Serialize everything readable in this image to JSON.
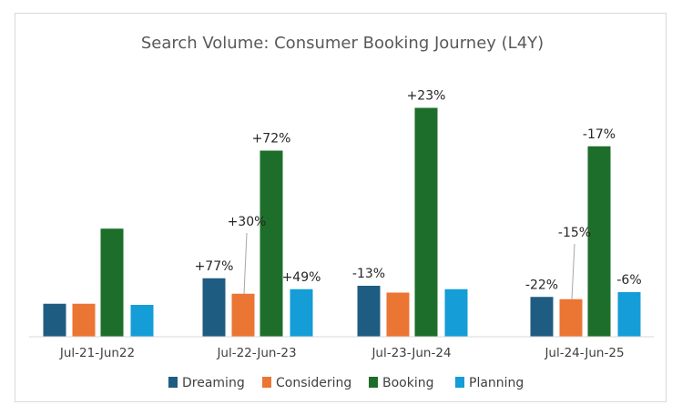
{
  "chart_data": {
    "type": "bar",
    "title": "Search Volume: Consumer Booking Journey (L4Y)",
    "xlabel": "",
    "ylabel": "",
    "ylim": [
      0,
      100
    ],
    "grid": false,
    "legend_position": "bottom",
    "categories": [
      "Jul-21-Jun22",
      "Jul-22-Jun-23",
      "Jul-23-Jun-24",
      "Jul-24-Jun-25"
    ],
    "series": [
      {
        "name": "Dreaming",
        "color": "#1f5c82",
        "values": [
          14.5,
          25.7,
          22.4,
          17.5
        ],
        "labels": [
          "",
          "+77%",
          "-13%",
          "-22%"
        ]
      },
      {
        "name": "Considering",
        "color": "#eb7533",
        "values": [
          14.5,
          18.9,
          19.4,
          16.5
        ],
        "labels": [
          "",
          "+30%",
          "",
          "-15%"
        ]
      },
      {
        "name": "Booking",
        "color": "#1d6e2a",
        "values": [
          47.5,
          81.8,
          100.6,
          83.7
        ],
        "labels": [
          "",
          "+72%",
          "+23%",
          "-17%"
        ]
      },
      {
        "name": "Planning",
        "color": "#149dd7",
        "values": [
          14.0,
          20.9,
          20.9,
          19.6
        ],
        "labels": [
          "",
          "+49%",
          "",
          "-6%"
        ]
      }
    ]
  }
}
